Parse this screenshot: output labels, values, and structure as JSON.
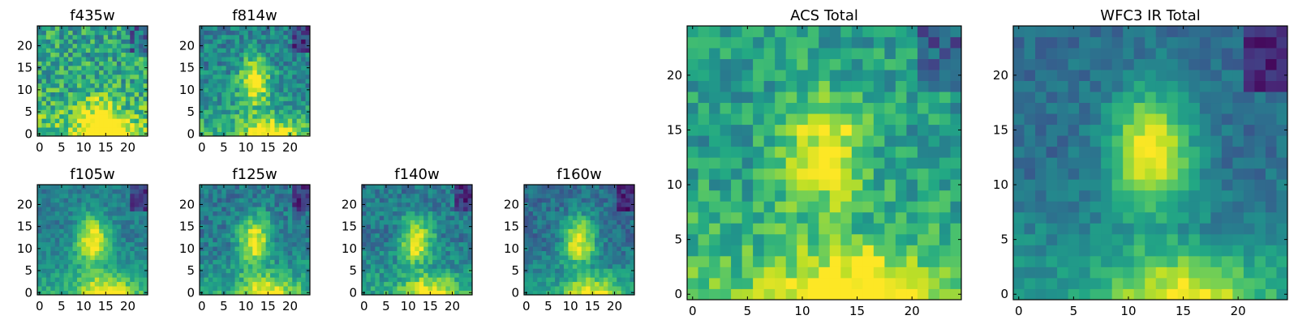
{
  "chart_data": [
    {
      "type": "heatmap",
      "title": "f435w",
      "grid_size": 25,
      "xticks": [
        0,
        5,
        10,
        15,
        20
      ],
      "yticks": [
        0,
        5,
        10,
        15,
        20
      ],
      "xlim": [
        0,
        24
      ],
      "ylim": [
        0,
        24
      ],
      "colormap": "viridis",
      "style": {
        "bright_center": [
          14,
          3
        ],
        "blob_strength": 0.35,
        "noise": 0.45,
        "base": 0.58
      }
    },
    {
      "type": "heatmap",
      "title": "f814w",
      "grid_size": 25,
      "xticks": [
        0,
        5,
        10,
        15,
        20
      ],
      "yticks": [
        0,
        5,
        10,
        15,
        20
      ],
      "xlim": [
        0,
        24
      ],
      "ylim": [
        0,
        24
      ],
      "colormap": "viridis",
      "style": {
        "bright_center": [
          12,
          12
        ],
        "blob_strength": 0.55,
        "noise": 0.35,
        "base": 0.45
      }
    },
    {
      "type": "heatmap",
      "title": "f105w",
      "grid_size": 25,
      "xticks": [
        0,
        5,
        10,
        15,
        20
      ],
      "yticks": [
        0,
        5,
        10,
        15,
        20
      ],
      "xlim": [
        0,
        24
      ],
      "ylim": [
        0,
        24
      ],
      "colormap": "viridis",
      "style": {
        "bright_center": [
          12,
          12
        ],
        "blob_strength": 0.6,
        "noise": 0.22,
        "base": 0.42
      }
    },
    {
      "type": "heatmap",
      "title": "f125w",
      "grid_size": 25,
      "xticks": [
        0,
        5,
        10,
        15,
        20
      ],
      "yticks": [
        0,
        5,
        10,
        15,
        20
      ],
      "xlim": [
        0,
        24
      ],
      "ylim": [
        0,
        24
      ],
      "colormap": "viridis",
      "style": {
        "bright_center": [
          12,
          12
        ],
        "blob_strength": 0.6,
        "noise": 0.28,
        "base": 0.4
      }
    },
    {
      "type": "heatmap",
      "title": "f140w",
      "grid_size": 25,
      "xticks": [
        0,
        5,
        10,
        15,
        20
      ],
      "yticks": [
        0,
        5,
        10,
        15,
        20
      ],
      "xlim": [
        0,
        24
      ],
      "ylim": [
        0,
        24
      ],
      "colormap": "viridis",
      "style": {
        "bright_center": [
          12,
          12
        ],
        "blob_strength": 0.6,
        "noise": 0.28,
        "base": 0.4
      }
    },
    {
      "type": "heatmap",
      "title": "f160w",
      "grid_size": 25,
      "xticks": [
        0,
        5,
        10,
        15,
        20
      ],
      "yticks": [
        0,
        5,
        10,
        15,
        20
      ],
      "xlim": [
        0,
        24
      ],
      "ylim": [
        0,
        24
      ],
      "colormap": "viridis",
      "style": {
        "bright_center": [
          12,
          12
        ],
        "blob_strength": 0.62,
        "noise": 0.25,
        "base": 0.36
      }
    },
    {
      "type": "heatmap",
      "title": "ACS Total",
      "grid_size": 25,
      "xticks": [
        0,
        5,
        10,
        15,
        20
      ],
      "yticks": [
        0,
        5,
        10,
        15,
        20
      ],
      "xlim": [
        0,
        24
      ],
      "ylim": [
        0,
        24
      ],
      "colormap": "viridis",
      "style": {
        "bright_center": [
          12,
          13
        ],
        "blob_strength": 0.45,
        "noise": 0.32,
        "base": 0.55
      }
    },
    {
      "type": "heatmap",
      "title": "WFC3 IR Total",
      "grid_size": 25,
      "xticks": [
        0,
        5,
        10,
        15,
        20
      ],
      "yticks": [
        0,
        5,
        10,
        15,
        20
      ],
      "xlim": [
        0,
        24
      ],
      "ylim": [
        0,
        24
      ],
      "colormap": "viridis",
      "style": {
        "bright_center": [
          12,
          13
        ],
        "blob_strength": 0.65,
        "noise": 0.18,
        "base": 0.36
      }
    }
  ]
}
